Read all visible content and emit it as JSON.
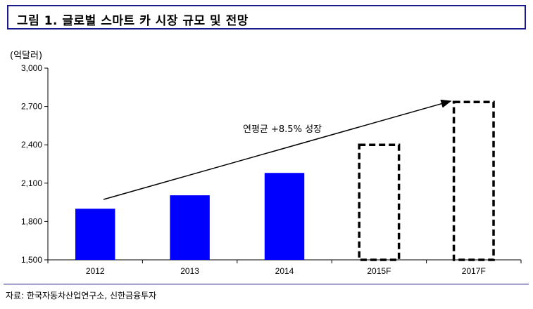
{
  "title": "그림 1. 글로벌 스마트 카 시장 규모 및 전망",
  "source": "자료: 한국자동차산업연구소, 신한금융투자",
  "chart_data": {
    "type": "bar",
    "unit_label": "(억달러)",
    "categories": [
      "2012",
      "2013",
      "2014",
      "2015F",
      "2017F"
    ],
    "values": [
      1900,
      2005,
      2180,
      2400,
      2735
    ],
    "bar_styles": [
      "solid",
      "solid",
      "solid",
      "dashed",
      "dashed"
    ],
    "bar_color": "#0000ff",
    "forecast_outline_color": "#000000",
    "ylim": [
      1500,
      3000
    ],
    "yticks": [
      1500,
      1800,
      2100,
      2400,
      2700,
      3000
    ],
    "ytick_labels": [
      "1,500",
      "1,800",
      "2,100",
      "2,400",
      "2,700",
      "3,000"
    ],
    "annotation": "연평균 +8.5% 성장",
    "grid": false,
    "title": "",
    "xlabel": "",
    "ylabel": ""
  }
}
